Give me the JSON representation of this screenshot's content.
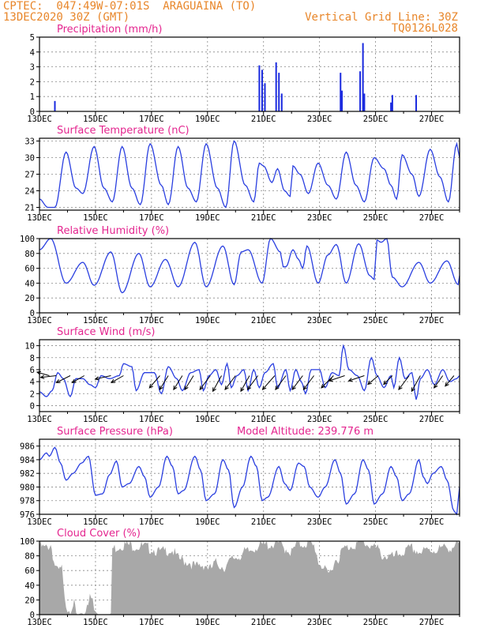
{
  "header": {
    "line1_left": "CPTEC:  047:49W-07:01S  ARAGUAINA (TO)",
    "line2_left": "13DEC2020 30Z (GMT)",
    "line1_right": "Vertical Grid Line: 30Z",
    "line2_right": "TQ0126L028"
  },
  "colors": {
    "header": "#e8862a",
    "title": "#e4258f",
    "line": "#2a3fe0",
    "bar": "#1a2adf",
    "cloud": "#a8a8a8",
    "wind_arrow": "#000000"
  },
  "x_ticks": [
    "13DEC",
    "15DEC",
    "17DEC",
    "19DEC",
    "21DEC",
    "23DEC",
    "25DEC",
    "27DEC"
  ],
  "chart_data": [
    {
      "id": "precip",
      "type": "bar",
      "title": "Precipitation (mm/h)",
      "ylim": [
        0,
        5
      ],
      "yticks": [
        0,
        1,
        2,
        3,
        4,
        5
      ],
      "grid": true,
      "x_unit": "days since 13DEC 00Z",
      "events": [
        [
          0.55,
          0.7
        ],
        [
          7.85,
          3.1
        ],
        [
          7.95,
          2.8
        ],
        [
          8.05,
          1.9
        ],
        [
          8.45,
          3.3
        ],
        [
          8.55,
          2.6
        ],
        [
          8.65,
          1.2
        ],
        [
          10.75,
          2.6
        ],
        [
          10.8,
          1.4
        ],
        [
          11.45,
          2.7
        ],
        [
          11.55,
          4.6
        ],
        [
          11.6,
          1.2
        ],
        [
          12.55,
          0.6
        ],
        [
          12.6,
          1.1
        ],
        [
          13.45,
          1.1
        ]
      ]
    },
    {
      "id": "temp",
      "type": "line",
      "title": "Surface Temperature (nC)",
      "ylim": [
        20.5,
        33.5
      ],
      "yticks": [
        21,
        24,
        27,
        30,
        33
      ],
      "grid": true,
      "extrema": [
        [
          0,
          22.5
        ],
        [
          0.3,
          21.0
        ],
        [
          0.55,
          21.0
        ],
        [
          0.95,
          31.0
        ],
        [
          1.3,
          24.5
        ],
        [
          1.55,
          23.5
        ],
        [
          1.95,
          32.0
        ],
        [
          2.3,
          24.5
        ],
        [
          2.6,
          22.0
        ],
        [
          2.95,
          32.0
        ],
        [
          3.3,
          24.5
        ],
        [
          3.6,
          21.5
        ],
        [
          3.95,
          32.5
        ],
        [
          4.35,
          25.0
        ],
        [
          4.6,
          21.5
        ],
        [
          4.95,
          32.0
        ],
        [
          5.3,
          24.5
        ],
        [
          5.6,
          22.0
        ],
        [
          5.95,
          32.5
        ],
        [
          6.35,
          24.5
        ],
        [
          6.65,
          21.0
        ],
        [
          6.95,
          33.0
        ],
        [
          7.35,
          25.0
        ],
        [
          7.65,
          22.0
        ],
        [
          7.85,
          29.0
        ],
        [
          8.0,
          28.5
        ],
        [
          8.3,
          25.5
        ],
        [
          8.5,
          28.0
        ],
        [
          8.75,
          24.0
        ],
        [
          8.95,
          23.0
        ],
        [
          9.05,
          28.5
        ],
        [
          9.3,
          27.0
        ],
        [
          9.6,
          23.5
        ],
        [
          9.95,
          29.0
        ],
        [
          10.3,
          25.0
        ],
        [
          10.6,
          22.5
        ],
        [
          10.95,
          31.0
        ],
        [
          11.3,
          25.0
        ],
        [
          11.6,
          22.0
        ],
        [
          11.95,
          30.0
        ],
        [
          12.3,
          28.0
        ],
        [
          12.55,
          25.0
        ],
        [
          12.75,
          22.5
        ],
        [
          12.95,
          30.5
        ],
        [
          13.3,
          27.0
        ],
        [
          13.55,
          23.0
        ],
        [
          13.95,
          31.5
        ],
        [
          14.3,
          26.5
        ],
        [
          14.6,
          22.0
        ],
        [
          14.9,
          32.5
        ],
        [
          15.0,
          30.0
        ]
      ]
    },
    {
      "id": "rh",
      "type": "line",
      "title": "Relative Humidity (%)",
      "ylim": [
        0,
        100
      ],
      "yticks": [
        0,
        20,
        40,
        60,
        80,
        100
      ],
      "grid": true,
      "extrema": [
        [
          0,
          85
        ],
        [
          0.4,
          100
        ],
        [
          0.95,
          40
        ],
        [
          1.55,
          68
        ],
        [
          1.95,
          37
        ],
        [
          2.55,
          82
        ],
        [
          2.95,
          27
        ],
        [
          3.55,
          80
        ],
        [
          3.95,
          35
        ],
        [
          4.5,
          72
        ],
        [
          4.95,
          35
        ],
        [
          5.55,
          95
        ],
        [
          5.95,
          35
        ],
        [
          6.55,
          90
        ],
        [
          6.95,
          38
        ],
        [
          7.2,
          82
        ],
        [
          7.45,
          85
        ],
        [
          7.95,
          40
        ],
        [
          8.25,
          100
        ],
        [
          8.6,
          82
        ],
        [
          8.7,
          62
        ],
        [
          8.8,
          62
        ],
        [
          9.05,
          85
        ],
        [
          9.25,
          72
        ],
        [
          9.4,
          60
        ],
        [
          9.55,
          90
        ],
        [
          9.95,
          40
        ],
        [
          10.3,
          78
        ],
        [
          10.6,
          92
        ],
        [
          10.95,
          40
        ],
        [
          11.4,
          93
        ],
        [
          11.8,
          50
        ],
        [
          11.95,
          45
        ],
        [
          12.05,
          98
        ],
        [
          12.2,
          95
        ],
        [
          12.4,
          100
        ],
        [
          12.6,
          48
        ],
        [
          12.95,
          35
        ],
        [
          13.55,
          68
        ],
        [
          13.95,
          40
        ],
        [
          14.55,
          70
        ],
        [
          14.95,
          38
        ],
        [
          15.0,
          50
        ]
      ]
    },
    {
      "id": "wind",
      "type": "line",
      "title": "Surface Wind (m/s)",
      "ylim": [
        -1,
        11
      ],
      "yticks": [
        0,
        2,
        4,
        6,
        8,
        10
      ],
      "grid": true,
      "extrema": [
        [
          0,
          2.3
        ],
        [
          0.25,
          1.5
        ],
        [
          0.45,
          2.5
        ],
        [
          0.65,
          5.5
        ],
        [
          0.85,
          4.5
        ],
        [
          1.1,
          1.5
        ],
        [
          1.3,
          4.5
        ],
        [
          1.55,
          4.5
        ],
        [
          1.8,
          3.5
        ],
        [
          2.0,
          3.0
        ],
        [
          2.2,
          5.0
        ],
        [
          2.5,
          4.5
        ],
        [
          2.85,
          5.0
        ],
        [
          3.0,
          7.0
        ],
        [
          3.3,
          6.5
        ],
        [
          3.45,
          2.5
        ],
        [
          3.75,
          5.5
        ],
        [
          4.1,
          5.5
        ],
        [
          4.35,
          2.0
        ],
        [
          4.6,
          6.5
        ],
        [
          4.9,
          4.5
        ],
        [
          5.1,
          2.5
        ],
        [
          5.4,
          5.5
        ],
        [
          5.7,
          6.0
        ],
        [
          5.85,
          2.5
        ],
        [
          6.05,
          5.0
        ],
        [
          6.3,
          6.0
        ],
        [
          6.5,
          3.5
        ],
        [
          6.7,
          7.0
        ],
        [
          6.85,
          3.0
        ],
        [
          7.05,
          5.0
        ],
        [
          7.3,
          6.0
        ],
        [
          7.45,
          2.5
        ],
        [
          7.65,
          6.0
        ],
        [
          7.85,
          3.0
        ],
        [
          8.05,
          5.5
        ],
        [
          8.35,
          7.0
        ],
        [
          8.5,
          3.0
        ],
        [
          8.8,
          6.0
        ],
        [
          8.95,
          2.5
        ],
        [
          9.15,
          6.0
        ],
        [
          9.35,
          4.0
        ],
        [
          9.5,
          2.0
        ],
        [
          9.7,
          6.0
        ],
        [
          10.0,
          6.0
        ],
        [
          10.2,
          3.0
        ],
        [
          10.45,
          5.5
        ],
        [
          10.7,
          5.0
        ],
        [
          10.85,
          10.0
        ],
        [
          11.05,
          6.0
        ],
        [
          11.35,
          5.0
        ],
        [
          11.6,
          2.5
        ],
        [
          11.85,
          8.0
        ],
        [
          12.05,
          5.0
        ],
        [
          12.3,
          3.0
        ],
        [
          12.55,
          5.0
        ],
        [
          12.65,
          3.0
        ],
        [
          12.85,
          8.0
        ],
        [
          13.05,
          4.5
        ],
        [
          13.3,
          5.5
        ],
        [
          13.45,
          1.0
        ],
        [
          13.6,
          4.5
        ],
        [
          13.85,
          6.0
        ],
        [
          14.1,
          3.5
        ],
        [
          14.4,
          6.0
        ],
        [
          14.65,
          4.0
        ],
        [
          14.9,
          4.5
        ],
        [
          15.0,
          5.0
        ]
      ],
      "vectors": [
        [
          0.35,
          -0.7,
          0.2
        ],
        [
          0.6,
          -0.9,
          -0.1
        ],
        [
          1.1,
          -0.8,
          -0.4
        ],
        [
          1.6,
          -0.7,
          -0.4
        ],
        [
          2.55,
          -0.9,
          -0.2
        ],
        [
          3.0,
          -0.7,
          -0.4
        ],
        [
          4.3,
          -0.6,
          -0.7
        ],
        [
          4.6,
          -0.5,
          -0.8
        ],
        [
          5.1,
          -0.5,
          -0.8
        ],
        [
          5.5,
          -0.5,
          -0.8
        ],
        [
          6.1,
          -0.6,
          -0.8
        ],
        [
          6.5,
          -0.5,
          -0.9
        ],
        [
          7.0,
          -0.6,
          -0.8
        ],
        [
          7.5,
          -0.5,
          -0.9
        ],
        [
          7.8,
          -0.6,
          -0.8
        ],
        [
          8.4,
          -0.7,
          -0.8
        ],
        [
          8.8,
          -0.6,
          -0.8
        ],
        [
          9.4,
          -0.6,
          -0.8
        ],
        [
          9.8,
          -0.6,
          -0.8
        ],
        [
          10.5,
          -0.7,
          -0.7
        ],
        [
          10.9,
          -0.9,
          -0.3
        ],
        [
          11.6,
          -0.9,
          -0.3
        ],
        [
          12.1,
          -0.6,
          -0.5
        ],
        [
          12.6,
          -0.5,
          -0.5
        ],
        [
          13.2,
          -0.6,
          -0.8
        ],
        [
          13.6,
          -0.5,
          -0.9
        ],
        [
          14.4,
          -0.5,
          -0.7
        ],
        [
          14.8,
          -0.5,
          -0.6
        ]
      ]
    },
    {
      "id": "pres",
      "type": "line",
      "title": "Surface Pressure (hPa)",
      "annotation": "Model Altitude: 239.776 m",
      "ylim": [
        976,
        987
      ],
      "yticks": [
        976,
        978,
        980,
        982,
        984,
        986
      ],
      "grid": true,
      "extrema": [
        [
          0,
          984.0
        ],
        [
          0.25,
          985.0
        ],
        [
          0.35,
          984.5
        ],
        [
          0.55,
          985.8
        ],
        [
          0.75,
          983.5
        ],
        [
          0.95,
          981.0
        ],
        [
          1.2,
          982.0
        ],
        [
          1.5,
          983.5
        ],
        [
          1.75,
          984.5
        ],
        [
          2.0,
          978.8
        ],
        [
          2.25,
          979.0
        ],
        [
          2.5,
          981.8
        ],
        [
          2.75,
          983.8
        ],
        [
          2.95,
          980.0
        ],
        [
          3.2,
          980.5
        ],
        [
          3.55,
          983.0
        ],
        [
          3.75,
          981.5
        ],
        [
          3.95,
          978.5
        ],
        [
          4.25,
          980.0
        ],
        [
          4.55,
          984.5
        ],
        [
          4.75,
          983.0
        ],
        [
          4.95,
          979.0
        ],
        [
          5.15,
          979.5
        ],
        [
          5.55,
          984.5
        ],
        [
          5.75,
          982.5
        ],
        [
          5.95,
          978.0
        ],
        [
          6.25,
          979.0
        ],
        [
          6.55,
          984.0
        ],
        [
          6.75,
          982.5
        ],
        [
          6.95,
          977.0
        ],
        [
          7.25,
          980.0
        ],
        [
          7.55,
          984.5
        ],
        [
          7.75,
          983.0
        ],
        [
          7.95,
          978.0
        ],
        [
          8.15,
          978.5
        ],
        [
          8.55,
          983.0
        ],
        [
          8.75,
          980.5
        ],
        [
          8.95,
          979.5
        ],
        [
          9.25,
          983.5
        ],
        [
          9.45,
          983.0
        ],
        [
          9.65,
          980.0
        ],
        [
          9.95,
          978.5
        ],
        [
          10.2,
          980.0
        ],
        [
          10.55,
          984.0
        ],
        [
          10.75,
          982.0
        ],
        [
          10.95,
          977.5
        ],
        [
          11.25,
          979.0
        ],
        [
          11.55,
          984.0
        ],
        [
          11.75,
          982.5
        ],
        [
          11.95,
          977.5
        ],
        [
          12.25,
          979.0
        ],
        [
          12.55,
          983.0
        ],
        [
          12.75,
          981.5
        ],
        [
          12.95,
          978.0
        ],
        [
          13.2,
          979.0
        ],
        [
          13.55,
          984.0
        ],
        [
          13.7,
          981.5
        ],
        [
          13.85,
          980.5
        ],
        [
          14.05,
          982.0
        ],
        [
          14.35,
          983.0
        ],
        [
          14.55,
          981.0
        ],
        [
          14.8,
          976.5
        ],
        [
          14.9,
          976.0
        ],
        [
          15.0,
          980.0
        ]
      ]
    },
    {
      "id": "cloud",
      "type": "area",
      "title": "Cloud Cover (%)",
      "ylim": [
        0,
        100
      ],
      "yticks": [
        0,
        20,
        40,
        60,
        80,
        100
      ],
      "grid": true,
      "profile": [
        [
          0,
          93
        ],
        [
          0.2,
          90
        ],
        [
          0.4,
          95
        ],
        [
          0.55,
          68
        ],
        [
          0.65,
          58
        ],
        [
          0.8,
          62
        ],
        [
          0.9,
          18
        ],
        [
          1.0,
          10
        ],
        [
          1.1,
          8
        ],
        [
          1.2,
          16
        ],
        [
          1.35,
          0
        ],
        [
          1.5,
          2
        ],
        [
          1.6,
          0
        ],
        [
          1.65,
          4
        ],
        [
          1.7,
          18
        ],
        [
          1.8,
          22
        ],
        [
          1.9,
          18
        ],
        [
          1.95,
          5
        ],
        [
          2.05,
          2
        ],
        [
          2.1,
          0
        ],
        [
          2.3,
          0
        ],
        [
          2.4,
          0
        ],
        [
          2.5,
          0
        ],
        [
          2.55,
          2
        ],
        [
          2.6,
          90
        ],
        [
          3.0,
          95
        ],
        [
          3.6,
          93
        ],
        [
          4.0,
          90
        ],
        [
          4.3,
          85
        ],
        [
          4.7,
          88
        ],
        [
          5.0,
          75
        ],
        [
          5.3,
          72
        ],
        [
          5.6,
          65
        ],
        [
          5.9,
          68
        ],
        [
          6.1,
          62
        ],
        [
          6.3,
          70
        ],
        [
          6.6,
          65
        ],
        [
          7.0,
          78
        ],
        [
          7.4,
          85
        ],
        [
          7.8,
          93
        ],
        [
          8.2,
          95
        ],
        [
          8.5,
          97
        ],
        [
          8.8,
          90
        ],
        [
          9.0,
          85
        ],
        [
          9.2,
          95
        ],
        [
          9.5,
          97
        ],
        [
          9.8,
          93
        ],
        [
          10.0,
          70
        ],
        [
          10.3,
          55
        ],
        [
          10.6,
          75
        ],
        [
          10.9,
          90
        ],
        [
          11.2,
          95
        ],
        [
          11.5,
          98
        ],
        [
          11.8,
          95
        ],
        [
          12.0,
          90
        ],
        [
          12.3,
          80
        ],
        [
          12.6,
          78
        ],
        [
          13.0,
          85
        ],
        [
          13.3,
          90
        ],
        [
          13.6,
          85
        ],
        [
          14.0,
          88
        ],
        [
          14.4,
          90
        ],
        [
          14.7,
          92
        ],
        [
          15.0,
          95
        ]
      ]
    }
  ]
}
